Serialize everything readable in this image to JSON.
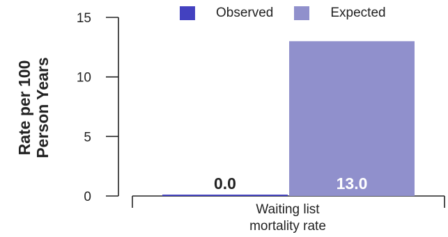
{
  "chart_data": {
    "type": "bar",
    "categories": [
      "Waiting list\nmortality rate"
    ],
    "series": [
      {
        "name": "Observed",
        "values": [
          0.0
        ],
        "color": "#4341c0",
        "value_label": "0.0"
      },
      {
        "name": "Expected",
        "values": [
          13.0
        ],
        "color": "#9090cc",
        "value_label": "13.0"
      }
    ],
    "ylabel": "Rate per 100\nPerson Years",
    "xlabel": "",
    "ylim": [
      0,
      15
    ],
    "yticks": [
      0,
      5,
      10,
      15
    ],
    "grid": false,
    "legend": "top-center"
  }
}
